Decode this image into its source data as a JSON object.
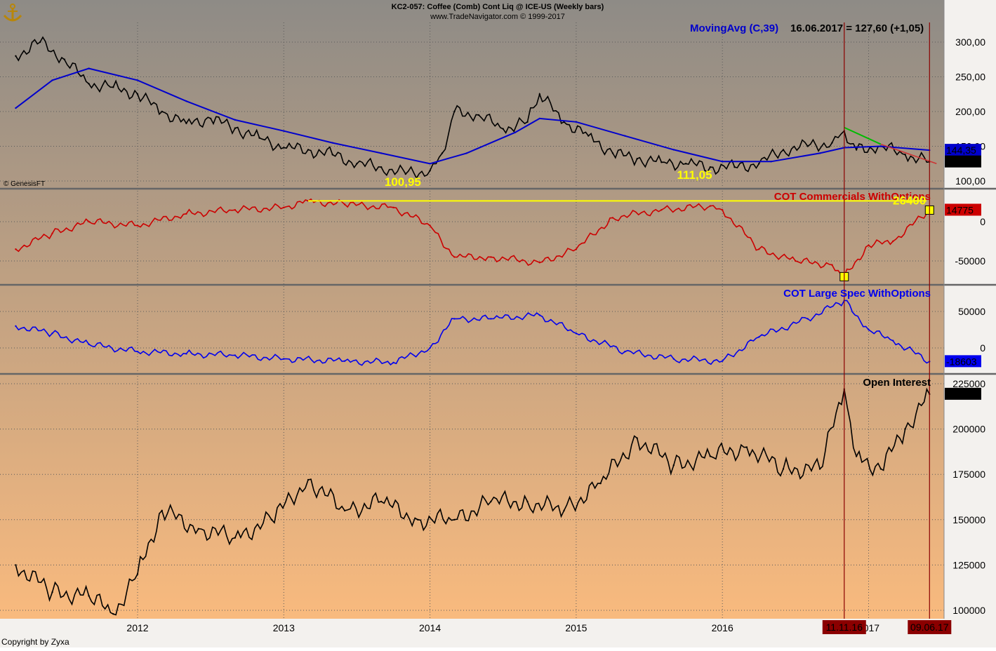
{
  "header": {
    "line1": "KC2-057:  Coffee (Comb) Cont Liq @ ICE-US  (Weekly bars)",
    "line2": "www.TradeNavigator.com © 1999-2017"
  },
  "watermark": "© GenesisFT",
  "copyright": "Copyright by Zyxa",
  "logo_icon": "anchor-logo-icon",
  "colors": {
    "background_top": "#8e8b86",
    "background_bottom": "#f9ba7e",
    "price": "#000000",
    "moving_avg": "#0000cc",
    "commercials": "#cc0000",
    "large_spec": "#0000ee",
    "open_interest": "#000000",
    "highlight_yellow": "#ffff00",
    "marker_red": "#8b0000",
    "trend_green": "#00bb00"
  },
  "x_axis": {
    "year_labels": [
      "2012",
      "2013",
      "2014",
      "2015",
      "2016",
      "2017"
    ],
    "markers": [
      {
        "label": "11.11.16"
      },
      {
        "label": "09.06.17"
      }
    ]
  },
  "chart_data": [
    {
      "type": "line",
      "panel": "price",
      "title": "MovingAvg (C,39)",
      "readout": "16.06.2017 = 127,60 (+1,05)",
      "y_ticks": [
        "300,00",
        "250,00",
        "200,00",
        "150,00",
        "100,00"
      ],
      "ylim": [
        90,
        330
      ],
      "last_values": {
        "moving_avg": "144,35",
        "close": "127,60"
      },
      "annotations": [
        {
          "text": "100,95",
          "x": "2013-11",
          "y": 100.95
        },
        {
          "text": "111,05",
          "x": "2015-11",
          "y": 111.05
        }
      ],
      "series": [
        {
          "name": "Close",
          "x": [
            "2011-03",
            "2011-05",
            "2011-07",
            "2011-09",
            "2011-11",
            "2012-01",
            "2012-03",
            "2012-05",
            "2012-07",
            "2012-09",
            "2012-11",
            "2013-01",
            "2013-03",
            "2013-05",
            "2013-07",
            "2013-09",
            "2013-11",
            "2014-01",
            "2014-02",
            "2014-03",
            "2014-05",
            "2014-07",
            "2014-09",
            "2014-10",
            "2014-12",
            "2015-02",
            "2015-04",
            "2015-06",
            "2015-08",
            "2015-10",
            "2015-12",
            "2016-02",
            "2016-04",
            "2016-06",
            "2016-08",
            "2016-10",
            "2016-11",
            "2016-12",
            "2017-02",
            "2017-04",
            "2017-06"
          ],
          "values": [
            280,
            300,
            275,
            240,
            235,
            225,
            200,
            183,
            190,
            176,
            162,
            148,
            145,
            138,
            125,
            120,
            110,
            115,
            140,
            200,
            195,
            175,
            185,
            225,
            185,
            165,
            140,
            132,
            127,
            125,
            120,
            120,
            125,
            145,
            150,
            155,
            172,
            145,
            150,
            138,
            127.6
          ]
        },
        {
          "name": "MovingAvg",
          "x": [
            "2011-03",
            "2011-06",
            "2011-09",
            "2012-01",
            "2012-05",
            "2012-09",
            "2013-01",
            "2013-05",
            "2013-09",
            "2014-01",
            "2014-04",
            "2014-08",
            "2014-10",
            "2015-01",
            "2015-05",
            "2015-09",
            "2016-01",
            "2016-05",
            "2016-09",
            "2016-11",
            "2017-02",
            "2017-06"
          ],
          "values": [
            205,
            245,
            262,
            245,
            215,
            188,
            172,
            155,
            140,
            125,
            140,
            170,
            190,
            185,
            165,
            145,
            128,
            128,
            140,
            148,
            150,
            144.35
          ]
        }
      ]
    },
    {
      "type": "line",
      "panel": "commercials",
      "title": "COT Commercials WithOptions",
      "y_ticks": [
        "0",
        "-50000"
      ],
      "ylim": [
        -80000,
        40000
      ],
      "last_value": "14775",
      "highlight_label": "26400",
      "series": [
        {
          "name": "COT Commercials WithOptions",
          "x": [
            "2011-03",
            "2011-06",
            "2011-09",
            "2012-01",
            "2012-05",
            "2012-09",
            "2013-01",
            "2013-03",
            "2013-06",
            "2013-10",
            "2014-01",
            "2014-03",
            "2014-06",
            "2014-10",
            "2015-01",
            "2015-04",
            "2015-08",
            "2015-12",
            "2016-01",
            "2016-04",
            "2016-07",
            "2016-10",
            "2016-11",
            "2017-01",
            "2017-03",
            "2017-06"
          ],
          "values": [
            -35000,
            -15000,
            0,
            -5000,
            10000,
            15000,
            18000,
            26400,
            22000,
            18000,
            -5000,
            -45000,
            -45000,
            -52000,
            -35000,
            5000,
            15000,
            20000,
            15000,
            -35000,
            -50000,
            -55000,
            -70000,
            -30000,
            -25000,
            14775
          ]
        }
      ]
    },
    {
      "type": "line",
      "panel": "large_spec",
      "title": "COT Large Spec WithOptions",
      "y_ticks": [
        "50000",
        "0"
      ],
      "ylim": [
        -35000,
        85000
      ],
      "last_value": "-18603",
      "series": [
        {
          "name": "COT Large Spec WithOptions",
          "x": [
            "2011-03",
            "2011-06",
            "2011-09",
            "2012-01",
            "2012-05",
            "2012-09",
            "2013-01",
            "2013-06",
            "2013-10",
            "2014-01",
            "2014-03",
            "2014-06",
            "2014-10",
            "2015-01",
            "2015-05",
            "2015-09",
            "2016-01",
            "2016-04",
            "2016-08",
            "2016-11",
            "2017-01",
            "2017-03",
            "2017-06"
          ],
          "values": [
            30000,
            20000,
            5000,
            -5000,
            -8000,
            -10000,
            -15000,
            -18000,
            -20000,
            0,
            40000,
            40000,
            45000,
            20000,
            -5000,
            -15000,
            -18000,
            15000,
            40000,
            65000,
            25000,
            10000,
            -18603
          ]
        }
      ]
    },
    {
      "type": "line",
      "panel": "open_interest",
      "title": "Open Interest",
      "y_ticks": [
        "225000",
        "200000",
        "175000",
        "150000",
        "125000",
        "100000"
      ],
      "ylim": [
        95000,
        230000
      ],
      "last_value": "219251",
      "series": [
        {
          "name": "Open Interest",
          "x": [
            "2011-03",
            "2011-06",
            "2011-09",
            "2011-11",
            "2012-01",
            "2012-03",
            "2012-06",
            "2012-09",
            "2012-12",
            "2013-03",
            "2013-06",
            "2013-09",
            "2013-12",
            "2014-03",
            "2014-06",
            "2014-09",
            "2014-12",
            "2015-03",
            "2015-06",
            "2015-09",
            "2015-12",
            "2016-03",
            "2016-06",
            "2016-09",
            "2016-11",
            "2016-12",
            "2017-02",
            "2017-04",
            "2017-06"
          ],
          "values": [
            125000,
            110000,
            108000,
            98000,
            120000,
            155000,
            145000,
            140000,
            150000,
            172000,
            155000,
            160000,
            150000,
            150000,
            160000,
            160000,
            155000,
            170000,
            195000,
            180000,
            185000,
            190000,
            178000,
            178000,
            222000,
            185000,
            178000,
            200000,
            219251
          ]
        }
      ]
    }
  ]
}
